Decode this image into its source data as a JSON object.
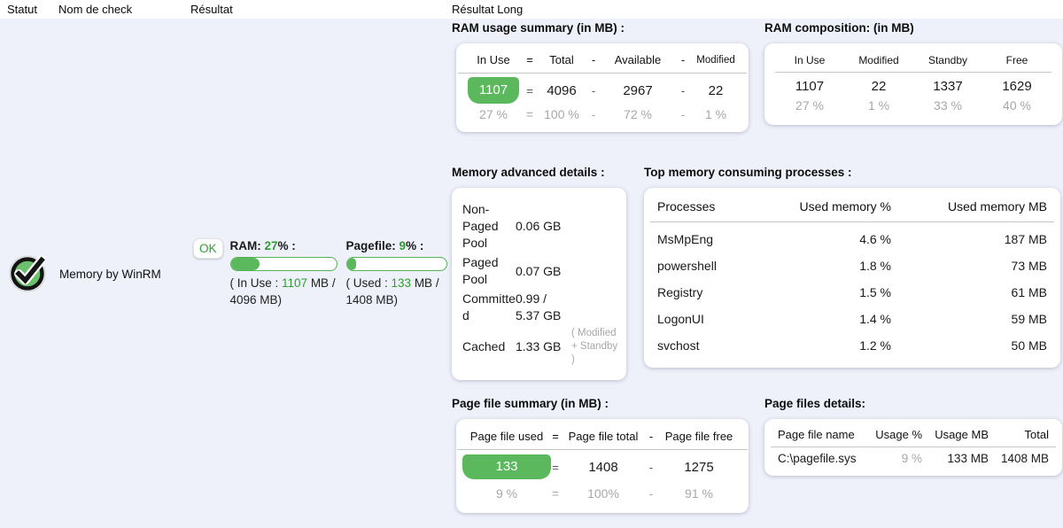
{
  "colors": {
    "accent_green": "#5cb85c",
    "green_text": "#2f9e2f",
    "gray_text": "#a7a7a7",
    "row_background": "#eef0fa",
    "status_ok": "#2f9e35"
  },
  "table_header": {
    "columns": [
      "Statut",
      "Nom de check",
      "Résultat",
      "Résultat Long"
    ]
  },
  "row": {
    "status_icon": "ok-check-icon",
    "check_name": "Memory by WinRM",
    "result": {
      "status_badge": "OK",
      "gauges": [
        {
          "label": "RAM: ",
          "value": "27",
          "suffix": "% :",
          "bar_percent": 27,
          "detail_prefix": "( In Use : ",
          "detail_value": "1107",
          "detail_suffix": " MB / 4096 MB)"
        },
        {
          "label": "Pagefile: ",
          "value": "9",
          "suffix": "% :",
          "bar_percent": 9,
          "detail_prefix": "( Used : ",
          "detail_value": "133",
          "detail_suffix": " MB / 1408 MB)"
        }
      ]
    }
  },
  "long_result": {
    "ram_usage_summary": {
      "title": "RAM usage summary (in MB) :",
      "headers": [
        "In Use",
        "=",
        "Total",
        "-",
        "Available",
        "-",
        "Modified"
      ],
      "values": [
        "1107",
        "=",
        "4096",
        "-",
        "2967",
        "-",
        "22"
      ],
      "percents": [
        "27 %",
        "=",
        "100 %",
        "-",
        "72 %",
        "-",
        "1 %"
      ]
    },
    "ram_composition": {
      "title": "RAM composition: (in MB)",
      "headers": [
        "In Use",
        "Modified",
        "Standby",
        "Free"
      ],
      "values": [
        "1107",
        "22",
        "1337",
        "1629"
      ],
      "percents": [
        "27 %",
        "1 %",
        "33 %",
        "40 %"
      ]
    },
    "memory_advanced": {
      "title": "Memory advanced details :",
      "rows": [
        {
          "label": "Non-Paged Pool",
          "value": "0.06 GB",
          "note": ""
        },
        {
          "label": "Paged Pool",
          "value": "0.07 GB",
          "note": ""
        },
        {
          "label": "Committed",
          "value": "0.99 / 5.37 GB",
          "note": ""
        },
        {
          "label": "Cached",
          "value": "1.33 GB",
          "note": "( Modified + Standby )"
        }
      ]
    },
    "top_processes": {
      "title": "Top memory consuming processes :",
      "headers": [
        "Processes",
        "Used memory %",
        "Used memory MB"
      ],
      "rows": [
        {
          "name": "MsMpEng",
          "used_pct": "4.6 %",
          "used_mb": "187 MB"
        },
        {
          "name": "powershell",
          "used_pct": "1.8 %",
          "used_mb": "73 MB"
        },
        {
          "name": "Registry",
          "used_pct": "1.5 %",
          "used_mb": "61 MB"
        },
        {
          "name": "LogonUI",
          "used_pct": "1.4 %",
          "used_mb": "59 MB"
        },
        {
          "name": "svchost",
          "used_pct": "1.2 %",
          "used_mb": "50 MB"
        }
      ]
    },
    "pagefile_summary": {
      "title": "Page file summary (in MB) :",
      "headers": [
        "Page file used",
        "=",
        "Page file total",
        "-",
        "Page file free"
      ],
      "values": [
        "133",
        "=",
        "1408",
        "-",
        "1275"
      ],
      "percents": [
        "9 %",
        "=",
        "100%",
        "-",
        "91 %"
      ]
    },
    "pagefile_details": {
      "title": "Page files details:",
      "headers": [
        "Page file name",
        "Usage %",
        "Usage MB",
        "Total"
      ],
      "rows": [
        {
          "name": "C:\\pagefile.sys",
          "usage_pct": "9 %",
          "usage_mb": "133 MB",
          "total": "1408 MB"
        }
      ]
    }
  }
}
